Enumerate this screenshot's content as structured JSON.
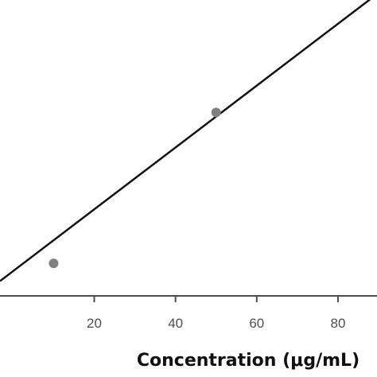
{
  "chart_data": {
    "type": "scatter",
    "title": "",
    "xlabel": "Concentration (μg/mL)",
    "ylabel": "",
    "xlim": [
      -3.2,
      89.6
    ],
    "ylim": [
      0,
      100
    ],
    "x_ticks": [
      20,
      40,
      60,
      80
    ],
    "grid": false,
    "legend": "none",
    "series": [
      {
        "kind": "points",
        "x": [
          10,
          50
        ],
        "y": [
          11,
          62
        ]
      },
      {
        "kind": "fit-line",
        "x": [
          -3.2,
          89.6
        ],
        "y": [
          5,
          102
        ]
      }
    ],
    "colors": {
      "points": "#808080",
      "line": "#111111",
      "axis": "#4d4d4d",
      "ticks_text": "#4d4d4d",
      "xlabel_text": "#111111"
    }
  }
}
